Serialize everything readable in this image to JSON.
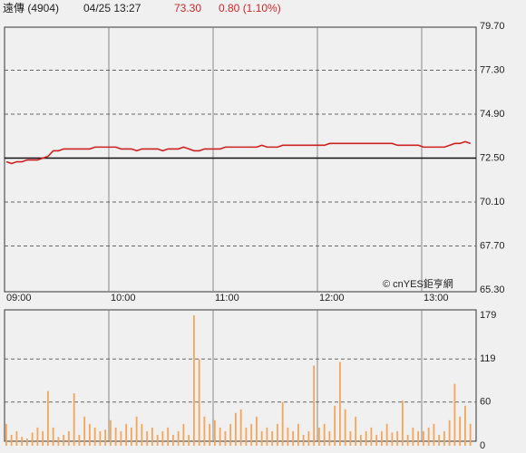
{
  "header": {
    "name": "遠傳 (4904)",
    "time": "04/25 13:27",
    "price": "73.30",
    "change": "0.80 (1.10%)"
  },
  "chart_data": [
    {
      "type": "line",
      "color": "#cc2222",
      "annotation": "© cnYES鉅亨網",
      "reference": 72.5,
      "categories": [
        "09:00",
        null,
        null,
        null,
        null,
        null,
        null,
        null,
        null,
        null,
        null,
        null,
        null,
        null,
        null,
        null,
        null,
        null,
        null,
        null,
        "10:00",
        null,
        null,
        null,
        null,
        null,
        null,
        null,
        null,
        null,
        null,
        null,
        null,
        null,
        null,
        null,
        null,
        null,
        null,
        null,
        "11:00",
        null,
        null,
        null,
        null,
        null,
        null,
        null,
        null,
        null,
        null,
        null,
        null,
        null,
        null,
        null,
        null,
        null,
        null,
        null,
        "12:00",
        null,
        null,
        null,
        null,
        null,
        null,
        null,
        null,
        null,
        null,
        null,
        null,
        null,
        null,
        null,
        null,
        null,
        null,
        null,
        "13:00",
        null,
        null,
        null,
        null,
        null,
        null,
        null,
        null,
        null
      ],
      "values": [
        72.3,
        72.2,
        72.3,
        72.3,
        72.4,
        72.4,
        72.4,
        72.5,
        72.6,
        72.9,
        72.9,
        73.0,
        73.0,
        73.0,
        73.0,
        73.0,
        73.0,
        73.1,
        73.1,
        73.1,
        73.1,
        73.1,
        73.0,
        73.0,
        73.0,
        72.9,
        73.0,
        73.0,
        73.0,
        73.0,
        72.9,
        73.0,
        73.0,
        73.0,
        73.1,
        73.0,
        72.9,
        72.9,
        73.0,
        73.0,
        73.0,
        73.0,
        73.1,
        73.1,
        73.1,
        73.1,
        73.1,
        73.1,
        73.1,
        73.2,
        73.1,
        73.1,
        73.1,
        73.2,
        73.2,
        73.2,
        73.2,
        73.2,
        73.2,
        73.2,
        73.2,
        73.2,
        73.3,
        73.3,
        73.3,
        73.3,
        73.3,
        73.3,
        73.3,
        73.3,
        73.3,
        73.3,
        73.3,
        73.3,
        73.3,
        73.2,
        73.2,
        73.2,
        73.2,
        73.2,
        73.1,
        73.1,
        73.1,
        73.1,
        73.1,
        73.2,
        73.3,
        73.3,
        73.4,
        73.3
      ],
      "ylim": [
        65.3,
        79.7
      ],
      "yticks": [
        {
          "value": 65.3,
          "label": "65.30"
        },
        {
          "value": 67.7,
          "label": "67.70"
        },
        {
          "value": 70.1,
          "label": "70.10"
        },
        {
          "value": 72.5,
          "label": "72.50"
        },
        {
          "value": 74.9,
          "label": "74.90"
        },
        {
          "value": 77.3,
          "label": "77.30"
        },
        {
          "value": 79.7,
          "label": "79.70"
        }
      ]
    },
    {
      "type": "bar",
      "color": "#f3a55a",
      "values": [
        30,
        15,
        20,
        12,
        10,
        18,
        25,
        20,
        75,
        25,
        12,
        15,
        20,
        72,
        15,
        40,
        30,
        25,
        20,
        22,
        35,
        25,
        20,
        30,
        25,
        40,
        30,
        20,
        25,
        15,
        20,
        25,
        15,
        20,
        30,
        15,
        179,
        119,
        40,
        30,
        35,
        25,
        20,
        30,
        45,
        50,
        25,
        30,
        40,
        20,
        25,
        20,
        30,
        60,
        25,
        20,
        30,
        15,
        20,
        110,
        25,
        30,
        20,
        55,
        115,
        50,
        20,
        40,
        15,
        20,
        25,
        15,
        20,
        30,
        18,
        20,
        62,
        15,
        25,
        20,
        20,
        25,
        30,
        15,
        20,
        35,
        85,
        40,
        55,
        30
      ],
      "ylim": [
        0,
        179
      ],
      "yticks": [
        0,
        60,
        119,
        179
      ]
    }
  ]
}
